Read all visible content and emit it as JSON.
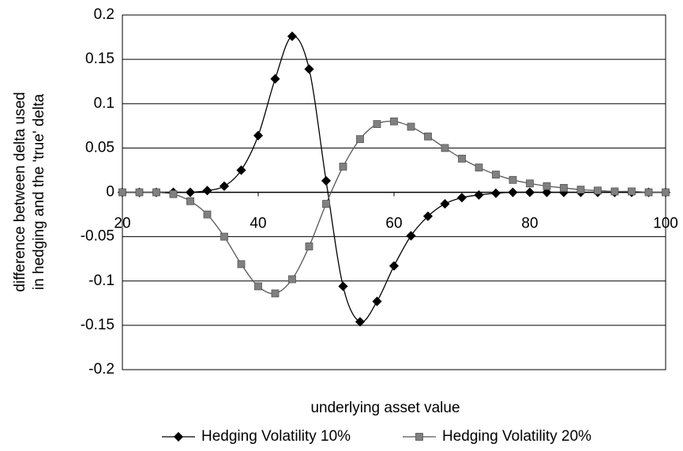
{
  "chart_data": {
    "type": "line",
    "xlabel": "underlying asset value",
    "ylabel": [
      "difference between delta used",
      "in hedging and the 'true' delta"
    ],
    "x": [
      20,
      22.5,
      25,
      27.5,
      30,
      32.5,
      35,
      37.5,
      40,
      42.5,
      45,
      47.5,
      50,
      52.5,
      55,
      57.5,
      60,
      62.5,
      65,
      67.5,
      70,
      72.5,
      75,
      77.5,
      80,
      82.5,
      85,
      87.5,
      90,
      92.5,
      95,
      97.5,
      100
    ],
    "series": [
      {
        "name": "Hedging Volatility 10%",
        "color": "#000000",
        "marker": "diamond",
        "values": [
          0,
          0,
          0,
          0,
          0,
          0.002,
          0.007,
          0.025,
          0.064,
          0.128,
          0.176,
          0.139,
          0.013,
          -0.106,
          -0.146,
          -0.123,
          -0.083,
          -0.049,
          -0.027,
          -0.013,
          -0.006,
          -0.003,
          -0.001,
          0,
          0,
          0,
          0,
          0,
          0,
          0,
          0,
          0,
          0
        ]
      },
      {
        "name": "Hedging Volatility 20%",
        "color": "#808080",
        "marker": "square",
        "values": [
          0,
          0,
          0,
          -0.002,
          -0.01,
          -0.025,
          -0.05,
          -0.081,
          -0.106,
          -0.114,
          -0.098,
          -0.061,
          -0.013,
          0.029,
          0.06,
          0.077,
          0.08,
          0.074,
          0.063,
          0.05,
          0.038,
          0.028,
          0.02,
          0.014,
          0.01,
          0.007,
          0.005,
          0.003,
          0.002,
          0.001,
          0.001,
          0,
          0
        ]
      }
    ],
    "xlim": [
      20,
      100
    ],
    "xticks": [
      20,
      40,
      60,
      80,
      100
    ],
    "ylim": [
      -0.2,
      0.2
    ],
    "yticks": [
      -0.2,
      -0.15,
      -0.1,
      -0.05,
      0,
      0.05,
      0.1,
      0.15,
      0.2
    ],
    "grid": true,
    "legend": "bottom"
  }
}
